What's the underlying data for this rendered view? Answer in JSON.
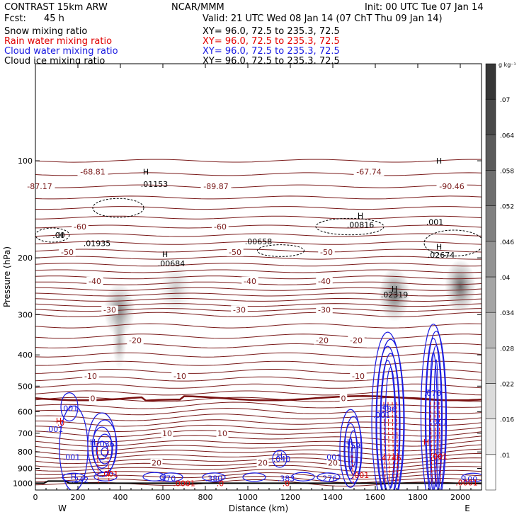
{
  "header": {
    "model": "CONTRAST 15km ARW",
    "forecast_label": "Fcst:",
    "forecast_value": "45 h",
    "org": "NCAR/MMM",
    "init": "Init: 00 UTC Tue 07 Jan 14",
    "valid": "Valid: 21 UTC Wed 08 Jan 14 (07 ChT Thu 09 Jan 14)",
    "fields": [
      {
        "name": "Snow mixing ratio",
        "xy": "XY=  96.0, 72.5 to 235.3, 72.5",
        "color": "#000000"
      },
      {
        "name": "Rain water mixing ratio",
        "xy": "XY=  96.0, 72.5 to 235.3, 72.5",
        "color": "#e00000"
      },
      {
        "name": "Cloud water mixing ratio",
        "xy": "XY=  96.0, 72.5 to 235.3, 72.5",
        "color": "#1a1ae0"
      },
      {
        "name": "Cloud ice mixing ratio",
        "xy": "XY=  96.0, 72.5 to 235.3, 72.5",
        "color": "#000000"
      }
    ]
  },
  "chart_data": {
    "type": "cross-section",
    "xlabel": "Distance (km)",
    "ylabel": "Pressure (hPa)",
    "xlim": [
      0,
      2100
    ],
    "ylim": [
      1050,
      50
    ],
    "y_scale": "log",
    "x_ticks": [
      0,
      200,
      400,
      600,
      800,
      1000,
      1200,
      1400,
      1600,
      1800,
      2000
    ],
    "x_tick_labels": [
      "0",
      "200",
      "400",
      "600",
      "800",
      "1000",
      "1200",
      "1400",
      "1600",
      "1800",
      "2000"
    ],
    "y_ticks": [
      100,
      200,
      300,
      400,
      500,
      600,
      700,
      800,
      900,
      1000
    ],
    "y_tick_labels": [
      "100",
      "200",
      "300",
      "400",
      "500",
      "600",
      "700",
      "800",
      "900",
      "1000"
    ],
    "west_label": "W",
    "east_label": "E",
    "colorbar": {
      "unit": "g kg⁻¹",
      "ticks": [
        0.01,
        0.016,
        0.022,
        0.028,
        0.034,
        0.04,
        0.046,
        0.052,
        0.058,
        0.064,
        0.07
      ],
      "tick_labels": [
        ".01",
        ".016",
        ".022",
        ".028",
        ".034",
        ".04",
        ".046",
        ".052",
        ".058",
        ".064",
        ".07"
      ],
      "colors": [
        "#ffffff",
        "#000000"
      ]
    },
    "snow_shading": [
      {
        "x": 395,
        "p": 290,
        "strength": 0.6
      },
      {
        "x": 660,
        "p": 250,
        "strength": 0.25
      },
      {
        "x": 1690,
        "p": 260,
        "strength": 0.7
      },
      {
        "x": 2000,
        "p": 245,
        "strength": 0.75
      }
    ],
    "temperature_contours": [
      {
        "label": "0",
        "p": 545,
        "label_x": [
          270,
          1450
        ]
      },
      {
        "label": "-10",
        "p": 465,
        "label_x": [
          260,
          680,
          1520
        ]
      },
      {
        "label": "-20",
        "p": 360,
        "label_x": [
          470,
          1350,
          1510
        ]
      },
      {
        "label": "-30",
        "p": 290,
        "label_x": [
          350,
          960,
          1360
        ]
      },
      {
        "label": "-40",
        "p": 236,
        "label_x": [
          280,
          1010,
          1360
        ]
      },
      {
        "label": "-50",
        "p": 192,
        "label_x": [
          150,
          940,
          1370
        ]
      },
      {
        "label": "-60",
        "p": 160,
        "label_x": [
          210,
          870
        ]
      },
      {
        "label": "-68.81",
        "p": 108,
        "label_x": [
          270
        ]
      },
      {
        "label": "-89.87",
        "p": 120,
        "label_x": [
          850
        ]
      },
      {
        "label": "-67.74",
        "p": 108,
        "label_x": [
          1570
        ]
      },
      {
        "label": "-90.46",
        "p": 120,
        "label_x": [
          1960
        ]
      },
      {
        "label": "-87.17",
        "p": 120,
        "label_x": [
          20
        ]
      },
      {
        "label": "10",
        "p": 700,
        "label_x": [
          620,
          880
        ]
      },
      {
        "label": "20",
        "p": 865,
        "label_x": [
          570,
          1070,
          1400
        ]
      }
    ],
    "maxima_labels": [
      {
        "text": ".00",
        "x": 110,
        "p": 170,
        "color": "#000000"
      },
      {
        "text": ".01935",
        "x": 290,
        "p": 180,
        "color": "#000000"
      },
      {
        "text": ".00684",
        "x": 640,
        "p": 208,
        "color": "#000000"
      },
      {
        "text": ".01153",
        "x": 560,
        "p": 118,
        "color": "#000000"
      },
      {
        "text": ".00658",
        "x": 1050,
        "p": 178,
        "color": "#000000"
      },
      {
        "text": ".00816",
        "x": 1530,
        "p": 158,
        "color": "#000000"
      },
      {
        "text": ".02674",
        "x": 1910,
        "p": 196,
        "color": "#000000"
      },
      {
        "text": ".02319",
        "x": 1690,
        "p": 260,
        "color": "#000000"
      },
      {
        "text": ".001",
        "x": 1880,
        "p": 155,
        "color": "#000000"
      },
      {
        "text": ".001",
        "x": 160,
        "p": 585,
        "color": "#1a1ae0"
      },
      {
        "text": ".001",
        "x": 90,
        "p": 680,
        "color": "#1a1ae0"
      },
      {
        "text": "1.036",
        "x": 320,
        "p": 755,
        "color": "#1a1ae0"
      },
      {
        "text": ".001",
        "x": 170,
        "p": 830,
        "color": "#1a1ae0"
      },
      {
        "text": ".242",
        "x": 210,
        "p": 975,
        "color": "#1a1ae0"
      },
      {
        "text": ".370",
        "x": 620,
        "p": 965,
        "color": "#1a1ae0"
      },
      {
        "text": ".380",
        "x": 840,
        "p": 965,
        "color": "#1a1ae0"
      },
      {
        "text": ".383",
        "x": 1180,
        "p": 965,
        "color": "#1a1ae0"
      },
      {
        "text": ".276",
        "x": 1380,
        "p": 965,
        "color": "#1a1ae0"
      },
      {
        "text": ".040",
        "x": 1160,
        "p": 840,
        "color": "#1a1ae0"
      },
      {
        "text": ".759",
        "x": 1490,
        "p": 765,
        "color": "#1a1ae0"
      },
      {
        "text": ".001",
        "x": 1400,
        "p": 830,
        "color": "#1a1ae0"
      },
      {
        "text": ".586",
        "x": 1660,
        "p": 590,
        "color": "#1a1ae0"
      },
      {
        "text": ".001",
        "x": 1630,
        "p": 615,
        "color": "#1a1ae0"
      },
      {
        "text": ".670",
        "x": 1870,
        "p": 525,
        "color": "#1a1ae0"
      },
      {
        "text": ".001",
        "x": 1900,
        "p": 645,
        "color": "#1a1ae0"
      },
      {
        "text": ".100",
        "x": 2040,
        "p": 970,
        "color": "#1a1ae0"
      },
      {
        "text": ".0",
        "x": 120,
        "p": 650,
        "color": "#e00000"
      },
      {
        "text": ".001",
        "x": 350,
        "p": 935,
        "color": "#e00000"
      },
      {
        "text": ".0001",
        "x": 700,
        "p": 1000,
        "color": "#e00000"
      },
      {
        "text": ".0",
        "x": 870,
        "p": 1000,
        "color": "#e00000"
      },
      {
        "text": ".0",
        "x": 1180,
        "p": 1000,
        "color": "#e00000"
      },
      {
        "text": ".001",
        "x": 1530,
        "p": 945,
        "color": "#e00000"
      },
      {
        "text": ".4746",
        "x": 1670,
        "p": 835,
        "color": "#e00000"
      },
      {
        "text": ".001",
        "x": 1900,
        "p": 825,
        "color": "#e00000"
      },
      {
        "text": ".0001",
        "x": 2030,
        "p": 995,
        "color": "#e00000"
      }
    ],
    "h_markers": [
      {
        "x": 120,
        "p": 170,
        "color": "#000000"
      },
      {
        "x": 520,
        "p": 108,
        "color": "#000000"
      },
      {
        "x": 610,
        "p": 195,
        "color": "#000000"
      },
      {
        "x": 1530,
        "p": 148,
        "color": "#000000"
      },
      {
        "x": 1900,
        "p": 185,
        "color": "#000000"
      },
      {
        "x": 1900,
        "p": 100,
        "color": "#000000"
      },
      {
        "x": 1690,
        "p": 250,
        "color": "#000000"
      },
      {
        "x": 110,
        "p": 640,
        "color": "#e00000"
      },
      {
        "x": 1840,
        "p": 745,
        "color": "#e00000"
      },
      {
        "x": 270,
        "p": 745,
        "color": "#1a1ae0"
      },
      {
        "x": 1150,
        "p": 820,
        "color": "#1a1ae0"
      },
      {
        "x": 1480,
        "p": 745,
        "color": "#1a1ae0"
      },
      {
        "x": 1650,
        "p": 580,
        "color": "#1a1ae0"
      },
      {
        "x": 1850,
        "p": 515,
        "color": "#1a1ae0"
      },
      {
        "x": 180,
        "p": 955,
        "color": "#1a1ae0"
      }
    ],
    "cloud_water_cores": [
      {
        "x": 320,
        "p": 760,
        "w": 40,
        "h": 90
      },
      {
        "x": 1490,
        "p": 780,
        "w": 30,
        "h": 110
      },
      {
        "x": 1665,
        "p": 640,
        "w": 45,
        "h": 250
      },
      {
        "x": 1880,
        "p": 620,
        "w": 35,
        "h": 260
      }
    ],
    "rain_columns": [
      {
        "x": 290,
        "p_top": 750,
        "p_bot": 1000
      },
      {
        "x": 340,
        "p_top": 780,
        "p_bot": 1000
      },
      {
        "x": 1490,
        "p_top": 820,
        "p_bot": 1000
      },
      {
        "x": 1640,
        "p_top": 560,
        "p_bot": 1000
      },
      {
        "x": 1660,
        "p_top": 560,
        "p_bot": 1000
      },
      {
        "x": 1680,
        "p_top": 560,
        "p_bot": 1000
      },
      {
        "x": 1700,
        "p_top": 560,
        "p_bot": 1000
      },
      {
        "x": 1860,
        "p_top": 560,
        "p_bot": 1000
      },
      {
        "x": 1880,
        "p_top": 560,
        "p_bot": 1000
      },
      {
        "x": 1900,
        "p_top": 560,
        "p_bot": 1000
      }
    ]
  }
}
